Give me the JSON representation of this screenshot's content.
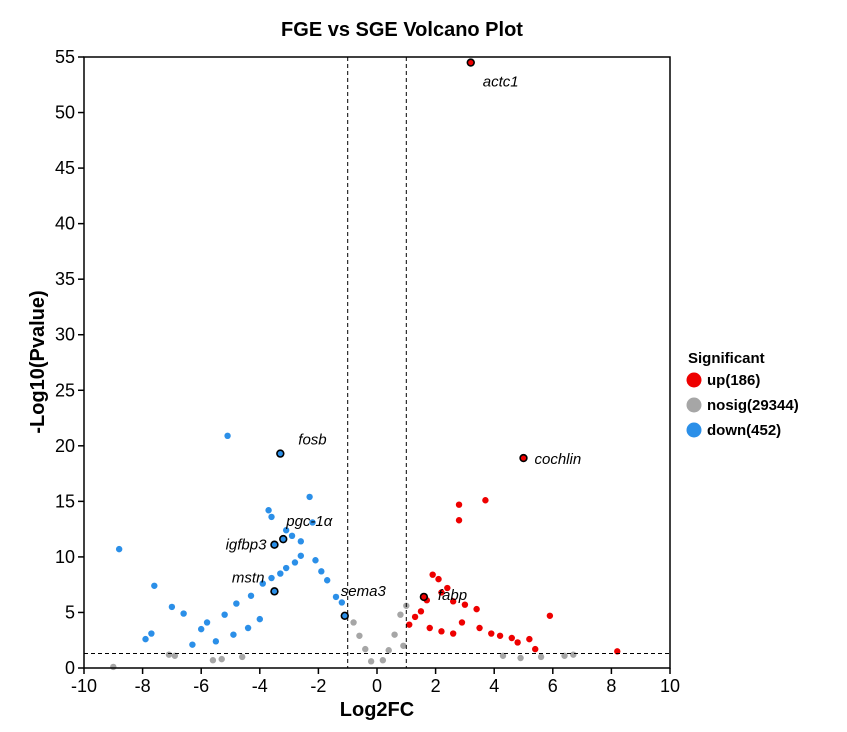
{
  "chart_data": {
    "type": "scatter",
    "title": "FGE vs SGE Volcano Plot",
    "xlabel": "Log2FC",
    "ylabel": "-Log10(Pvalue)",
    "xlim": [
      -10,
      10
    ],
    "ylim": [
      0,
      55
    ],
    "xticks": [
      "-10",
      "-8",
      "-6",
      "-4",
      "-2",
      "0",
      "2",
      "4",
      "6",
      "8",
      "10"
    ],
    "yticks": [
      "0",
      "5",
      "10",
      "15",
      "20",
      "25",
      "30",
      "35",
      "40",
      "45",
      "50",
      "55"
    ],
    "thresholds": {
      "log2fc": [
        -1,
        1
      ],
      "neg_log10_p": 1.3
    },
    "legend": {
      "title": "Significant",
      "placement": "right",
      "entries": [
        {
          "label": "up(186)",
          "color": "#ee0000"
        },
        {
          "label": "nosig(29344)",
          "color": "#a6a6a6"
        },
        {
          "label": "down(452)",
          "color": "#2b8fe8"
        }
      ]
    },
    "series": [
      {
        "name": "up(186)",
        "color": "#ee0000",
        "points": [
          [
            3.2,
            54.5
          ],
          [
            5.0,
            18.9
          ],
          [
            3.7,
            15.1
          ],
          [
            2.8,
            14.7
          ],
          [
            2.8,
            13.3
          ],
          [
            1.6,
            6.4
          ],
          [
            1.7,
            6.1
          ],
          [
            1.9,
            8.4
          ],
          [
            2.1,
            8.0
          ],
          [
            2.4,
            7.2
          ],
          [
            2.2,
            6.8
          ],
          [
            2.6,
            6.0
          ],
          [
            3.0,
            5.7
          ],
          [
            3.4,
            5.3
          ],
          [
            5.9,
            4.7
          ],
          [
            8.2,
            1.5
          ],
          [
            3.9,
            3.1
          ],
          [
            4.2,
            2.9
          ],
          [
            4.6,
            2.7
          ],
          [
            5.2,
            2.6
          ],
          [
            4.8,
            2.3
          ],
          [
            5.4,
            1.7
          ],
          [
            3.5,
            3.6
          ],
          [
            2.9,
            4.1
          ],
          [
            1.3,
            4.6
          ],
          [
            1.5,
            5.1
          ],
          [
            1.1,
            3.9
          ],
          [
            1.8,
            3.6
          ],
          [
            2.2,
            3.3
          ],
          [
            2.6,
            3.1
          ]
        ]
      },
      {
        "name": "down(452)",
        "color": "#2b8fe8",
        "points": [
          [
            -3.3,
            19.3
          ],
          [
            -5.1,
            20.9
          ],
          [
            -3.2,
            11.6
          ],
          [
            -3.5,
            11.1
          ],
          [
            -3.5,
            6.9
          ],
          [
            -1.1,
            4.7
          ],
          [
            -8.8,
            10.7
          ],
          [
            -7.6,
            7.4
          ],
          [
            -7.0,
            5.5
          ],
          [
            -6.6,
            4.9
          ],
          [
            -7.9,
            2.6
          ],
          [
            -7.7,
            3.1
          ],
          [
            -6.0,
            3.5
          ],
          [
            -5.8,
            4.1
          ],
          [
            -5.2,
            4.8
          ],
          [
            -4.8,
            5.8
          ],
          [
            -4.3,
            6.5
          ],
          [
            -3.7,
            14.2
          ],
          [
            -3.6,
            13.6
          ],
          [
            -3.1,
            12.4
          ],
          [
            -2.9,
            11.9
          ],
          [
            -2.6,
            11.4
          ],
          [
            -2.3,
            15.4
          ],
          [
            -2.2,
            13.1
          ],
          [
            -2.6,
            10.1
          ],
          [
            -2.8,
            9.5
          ],
          [
            -3.1,
            9.0
          ],
          [
            -3.3,
            8.5
          ],
          [
            -3.6,
            8.1
          ],
          [
            -3.9,
            7.6
          ],
          [
            -2.1,
            9.7
          ],
          [
            -1.9,
            8.7
          ],
          [
            -1.7,
            7.9
          ],
          [
            -1.4,
            6.4
          ],
          [
            -1.2,
            5.9
          ],
          [
            -4.0,
            4.4
          ],
          [
            -4.4,
            3.6
          ],
          [
            -4.9,
            3.0
          ],
          [
            -5.5,
            2.4
          ],
          [
            -6.3,
            2.1
          ]
        ]
      },
      {
        "name": "nosig(29344)",
        "color": "#a6a6a6",
        "points": [
          [
            -9.0,
            0.1
          ],
          [
            -7.1,
            1.2
          ],
          [
            -6.9,
            1.1
          ],
          [
            -5.6,
            0.7
          ],
          [
            -5.3,
            0.8
          ],
          [
            -4.6,
            1.0
          ],
          [
            6.4,
            1.1
          ],
          [
            6.7,
            1.2
          ],
          [
            5.6,
            1.0
          ],
          [
            4.9,
            0.9
          ],
          [
            4.3,
            1.1
          ],
          [
            0.9,
            2.0
          ],
          [
            0.8,
            4.8
          ],
          [
            1.0,
            5.6
          ],
          [
            0.6,
            3.0
          ],
          [
            0.4,
            1.6
          ],
          [
            -0.6,
            2.9
          ],
          [
            -0.8,
            4.1
          ],
          [
            -0.4,
            1.7
          ],
          [
            -0.2,
            0.6
          ],
          [
            0.2,
            0.7
          ]
        ]
      }
    ],
    "annotations": [
      {
        "label": "actc1",
        "x": 3.2,
        "y": 54.5
      },
      {
        "label": "cochlin",
        "x": 5.0,
        "y": 18.9
      },
      {
        "label": "fosb",
        "x": -3.3,
        "y": 19.3
      },
      {
        "label": "pgc-1α",
        "x": -3.2,
        "y": 11.6
      },
      {
        "label": "igfbp3",
        "x": -3.5,
        "y": 11.1
      },
      {
        "label": "mstn",
        "x": -3.5,
        "y": 6.9
      },
      {
        "label": "sema3",
        "x": -1.1,
        "y": 4.7
      },
      {
        "label": "fabp",
        "x": 1.6,
        "y": 6.4
      }
    ]
  }
}
